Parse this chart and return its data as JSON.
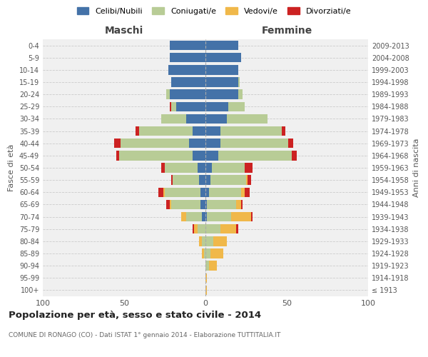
{
  "age_groups": [
    "100+",
    "95-99",
    "90-94",
    "85-89",
    "80-84",
    "75-79",
    "70-74",
    "65-69",
    "60-64",
    "55-59",
    "50-54",
    "45-49",
    "40-44",
    "35-39",
    "30-34",
    "25-29",
    "20-24",
    "15-19",
    "10-14",
    "5-9",
    "0-4"
  ],
  "birth_years": [
    "≤ 1913",
    "1914-1918",
    "1919-1923",
    "1924-1928",
    "1929-1933",
    "1934-1938",
    "1939-1943",
    "1944-1948",
    "1949-1953",
    "1954-1958",
    "1959-1963",
    "1964-1968",
    "1969-1973",
    "1974-1978",
    "1979-1983",
    "1984-1988",
    "1989-1993",
    "1994-1998",
    "1999-2003",
    "2004-2008",
    "2009-2013"
  ],
  "colors": {
    "celibi": "#4472a8",
    "coniugati": "#b8cc96",
    "vedovi": "#f0b84a",
    "divorziati": "#cc2222"
  },
  "maschi": {
    "celibi": [
      0,
      0,
      0,
      0,
      0,
      0,
      2,
      3,
      3,
      4,
      5,
      8,
      10,
      8,
      12,
      18,
      22,
      21,
      23,
      22,
      22
    ],
    "coniugati": [
      0,
      0,
      0,
      1,
      2,
      5,
      10,
      18,
      22,
      16,
      20,
      45,
      42,
      33,
      15,
      3,
      2,
      0,
      0,
      0,
      0
    ],
    "vedovi": [
      0,
      0,
      0,
      1,
      2,
      2,
      3,
      1,
      1,
      0,
      0,
      0,
      0,
      0,
      0,
      0,
      0,
      0,
      0,
      0,
      0
    ],
    "divorziati": [
      0,
      0,
      0,
      0,
      0,
      1,
      0,
      2,
      3,
      1,
      2,
      2,
      4,
      2,
      0,
      1,
      0,
      0,
      0,
      0,
      0
    ]
  },
  "femmine": {
    "celibi": [
      0,
      0,
      0,
      0,
      0,
      0,
      1,
      1,
      2,
      3,
      4,
      8,
      9,
      9,
      13,
      14,
      20,
      20,
      20,
      22,
      20
    ],
    "coniugati": [
      0,
      0,
      2,
      3,
      5,
      9,
      15,
      18,
      20,
      22,
      20,
      45,
      42,
      38,
      25,
      10,
      3,
      1,
      0,
      0,
      0
    ],
    "vedovi": [
      1,
      1,
      5,
      8,
      8,
      10,
      12,
      3,
      2,
      1,
      0,
      0,
      0,
      0,
      0,
      0,
      0,
      0,
      0,
      0,
      0
    ],
    "divorziati": [
      0,
      0,
      0,
      0,
      0,
      1,
      1,
      1,
      3,
      2,
      5,
      3,
      3,
      2,
      0,
      0,
      0,
      0,
      0,
      0,
      0
    ]
  },
  "title": "Popolazione per età, sesso e stato civile - 2014",
  "subtitle": "COMUNE DI RONAGO (CO) - Dati ISTAT 1° gennaio 2014 - Elaborazione TUTTITALIA.IT",
  "xlabel_left": "Maschi",
  "xlabel_right": "Femmine",
  "ylabel_left": "Fasce di età",
  "ylabel_right": "Anni di nascita",
  "xlim": 100,
  "legend_labels": [
    "Celibi/Nubili",
    "Coniugati/e",
    "Vedovi/e",
    "Divorziati/e"
  ],
  "background_color": "#ffffff",
  "grid_color": "#cccccc"
}
